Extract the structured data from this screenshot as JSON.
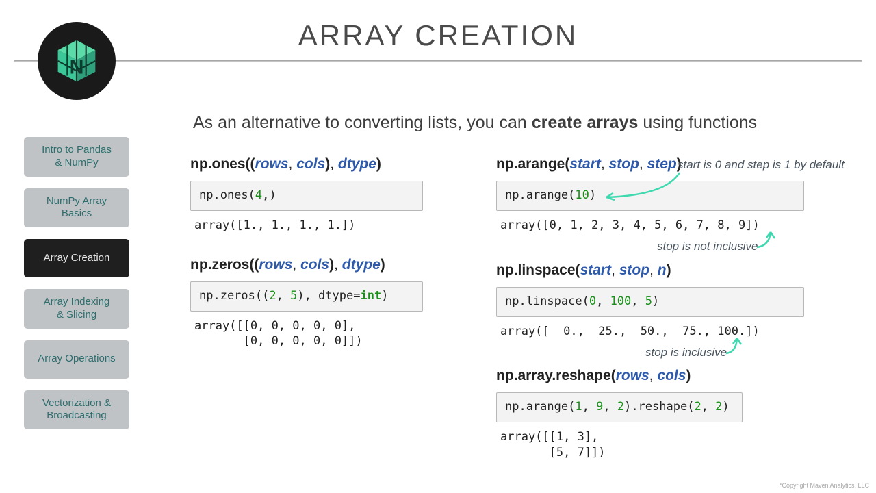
{
  "title": "ARRAY CREATION",
  "intro_pre": "As an alternative to converting lists, you can ",
  "intro_bold": "create arrays",
  "intro_post": " using functions",
  "nav": [
    "Intro to Pandas\n& NumPy",
    "NumPy Array\nBasics",
    "Array Creation",
    "Array Indexing\n& Slicing",
    "Array Operations",
    "Vectorization &\nBroadcasting"
  ],
  "nav_active_index": 2,
  "colors": {
    "accent_arg": "#2e5aac",
    "code_num": "#1a8f1a",
    "arrow": "#3fd9b0"
  },
  "blocks": {
    "ones": {
      "sig_func": "np.ones",
      "sig_args": "((rows, cols), dtype)",
      "code_html": "np.ones(<span class='n'>4</span>,)",
      "out": "array([1., 1., 1., 1.])"
    },
    "zeros": {
      "sig_func": "np.zeros",
      "sig_args": "((rows, cols), dtype)",
      "code_html": "np.zeros((<span class='n'>2</span>, <span class='n'>5</span>), dtype=<span class='kw'>int</span>)",
      "out": "array([[0, 0, 0, 0, 0],\n       [0, 0, 0, 0, 0]])"
    },
    "arange": {
      "sig_func": "np.arange",
      "sig_args": "(start, stop, step)",
      "code_html": "np.arange(<span class='n'>10</span>)",
      "out": "array([0, 1, 2, 3, 4, 5, 6, 7, 8, 9])"
    },
    "linspace": {
      "sig_func": "np.linspace",
      "sig_args": "(start, stop, n)",
      "code_html": "np.linspace(<span class='n'>0</span>, <span class='n'>100</span>, <span class='n'>5</span>)",
      "out": "array([  0.,  25.,  50.,  75., 100.])"
    },
    "reshape": {
      "sig_func": "np.array.reshape",
      "sig_args": "(rows, cols)",
      "code_html": "np.arange(<span class='n'>1</span>, <span class='n'>9</span>, <span class='n'>2</span>).reshape(<span class='n'>2</span>, <span class='n'>2</span>)",
      "out": "array([[1, 3],\n       [5, 7]])"
    }
  },
  "annot": {
    "arange_top": "start is 0 and step is 1 by default",
    "arange_bottom": "stop is not inclusive",
    "linspace": "stop is inclusive"
  },
  "copyright": "*Copyright Maven Analytics, LLC"
}
